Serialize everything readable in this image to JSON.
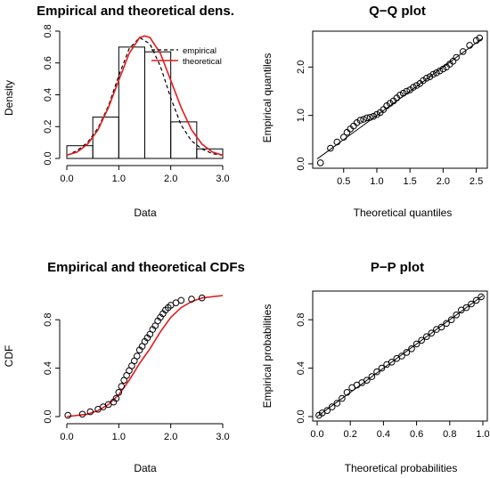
{
  "chart_data": [
    {
      "type": "bar",
      "title": "Empirical and theoretical dens.",
      "xlabel": "Data",
      "ylabel": "Density",
      "xlim": [
        0,
        3
      ],
      "ylim": [
        0,
        0.8
      ],
      "xticks": [
        "0.0",
        "1.0",
        "2.0",
        "3.0"
      ],
      "yticks": [
        "0.0",
        "0.2",
        "0.4",
        "0.6",
        "0.8"
      ],
      "bins": [
        {
          "from": 0.0,
          "to": 0.5,
          "density": 0.08
        },
        {
          "from": 0.5,
          "to": 1.0,
          "density": 0.26
        },
        {
          "from": 1.0,
          "to": 1.5,
          "density": 0.7
        },
        {
          "from": 1.5,
          "to": 2.0,
          "density": 0.67
        },
        {
          "from": 2.0,
          "to": 2.5,
          "density": 0.23
        },
        {
          "from": 2.5,
          "to": 3.0,
          "density": 0.06
        }
      ],
      "legend": {
        "position": "top-right",
        "entries": [
          "empirical",
          "theoretical"
        ]
      },
      "series": [
        {
          "name": "empirical",
          "style": "dashed",
          "color": "#000000",
          "x": [
            0.0,
            0.2,
            0.4,
            0.6,
            0.8,
            1.0,
            1.2,
            1.4,
            1.6,
            1.8,
            2.0,
            2.2,
            2.4,
            2.6,
            2.8,
            3.0
          ],
          "y": [
            0.02,
            0.05,
            0.1,
            0.19,
            0.33,
            0.52,
            0.69,
            0.76,
            0.72,
            0.58,
            0.38,
            0.21,
            0.11,
            0.06,
            0.03,
            0.02
          ]
        },
        {
          "name": "theoretical",
          "style": "solid",
          "color": "#e41a1c",
          "x": [
            0.0,
            0.2,
            0.4,
            0.6,
            0.8,
            1.0,
            1.2,
            1.4,
            1.5,
            1.6,
            1.8,
            2.0,
            2.2,
            2.4,
            2.6,
            2.8,
            3.0
          ],
          "y": [
            0.02,
            0.04,
            0.09,
            0.18,
            0.32,
            0.49,
            0.66,
            0.76,
            0.77,
            0.76,
            0.66,
            0.49,
            0.32,
            0.18,
            0.09,
            0.04,
            0.02
          ]
        }
      ]
    },
    {
      "type": "scatter",
      "title": "Q−Q plot",
      "xlabel": "Theoretical quantiles",
      "ylabel": "Empirical quantiles",
      "xlim": [
        0.1,
        2.6
      ],
      "ylim": [
        0,
        2.65
      ],
      "xticks": [
        "0.5",
        "1.0",
        "1.5",
        "2.0",
        "2.5"
      ],
      "yticks": [
        "0.0",
        "1.0",
        "2.0"
      ],
      "reference_line": {
        "from": [
          0.1,
          0.1
        ],
        "to": [
          2.6,
          2.6
        ]
      },
      "x": [
        0.15,
        0.3,
        0.4,
        0.5,
        0.55,
        0.6,
        0.65,
        0.7,
        0.75,
        0.8,
        0.85,
        0.9,
        0.95,
        1.0,
        1.05,
        1.1,
        1.15,
        1.2,
        1.25,
        1.3,
        1.35,
        1.4,
        1.45,
        1.5,
        1.55,
        1.6,
        1.65,
        1.7,
        1.75,
        1.8,
        1.85,
        1.9,
        1.95,
        2.0,
        2.05,
        2.1,
        2.15,
        2.2,
        2.3,
        2.4,
        2.5,
        2.55
      ],
      "y": [
        0.02,
        0.32,
        0.45,
        0.55,
        0.65,
        0.72,
        0.78,
        0.85,
        0.9,
        0.92,
        0.95,
        0.96,
        0.98,
        1.02,
        1.06,
        1.12,
        1.2,
        1.25,
        1.3,
        1.36,
        1.42,
        1.46,
        1.5,
        1.53,
        1.58,
        1.62,
        1.66,
        1.72,
        1.77,
        1.8,
        1.85,
        1.88,
        1.92,
        1.96,
        2.0,
        2.06,
        2.12,
        2.2,
        2.32,
        2.45,
        2.55,
        2.6
      ]
    },
    {
      "type": "scatter",
      "title": "Empirical and theoretical CDFs",
      "xlabel": "Data",
      "ylabel": "CDF",
      "xlim": [
        0,
        3
      ],
      "ylim": [
        0,
        1
      ],
      "xticks": [
        "0.0",
        "1.0",
        "2.0",
        "3.0"
      ],
      "yticks": [
        "0.0",
        "0.4",
        "0.8"
      ],
      "points": {
        "x": [
          0.02,
          0.3,
          0.45,
          0.6,
          0.7,
          0.8,
          0.9,
          0.95,
          1.0,
          1.05,
          1.1,
          1.15,
          1.2,
          1.25,
          1.3,
          1.35,
          1.4,
          1.45,
          1.5,
          1.55,
          1.6,
          1.65,
          1.7,
          1.75,
          1.8,
          1.85,
          1.9,
          1.95,
          2.0,
          2.1,
          2.2,
          2.4,
          2.6
        ],
        "y": [
          0.01,
          0.02,
          0.04,
          0.06,
          0.08,
          0.1,
          0.12,
          0.15,
          0.2,
          0.25,
          0.3,
          0.34,
          0.38,
          0.42,
          0.46,
          0.5,
          0.55,
          0.58,
          0.62,
          0.65,
          0.68,
          0.72,
          0.75,
          0.79,
          0.82,
          0.85,
          0.88,
          0.9,
          0.92,
          0.94,
          0.96,
          0.97,
          0.98
        ]
      },
      "theoretical_cdf": {
        "color": "#e41a1c",
        "x": [
          0.0,
          0.4,
          0.6,
          0.8,
          1.0,
          1.2,
          1.4,
          1.5,
          1.6,
          1.8,
          2.0,
          2.2,
          2.4,
          2.6,
          3.0
        ],
        "y": [
          0.0,
          0.02,
          0.05,
          0.1,
          0.18,
          0.3,
          0.44,
          0.5,
          0.56,
          0.7,
          0.82,
          0.9,
          0.95,
          0.98,
          1.0
        ]
      }
    },
    {
      "type": "scatter",
      "title": "P−P plot",
      "xlabel": "Theoretical probabilities",
      "ylabel": "Empirical probabilities",
      "xlim": [
        0,
        1
      ],
      "ylim": [
        0,
        1
      ],
      "xticks": [
        "0.0",
        "0.2",
        "0.4",
        "0.6",
        "0.8",
        "1.0"
      ],
      "yticks": [
        "0.0",
        "0.4",
        "0.8"
      ],
      "reference_line": {
        "from": [
          0,
          0
        ],
        "to": [
          1,
          1
        ]
      },
      "x": [
        0.01,
        0.03,
        0.06,
        0.09,
        0.12,
        0.15,
        0.18,
        0.21,
        0.24,
        0.27,
        0.3,
        0.33,
        0.36,
        0.39,
        0.42,
        0.45,
        0.48,
        0.51,
        0.54,
        0.57,
        0.6,
        0.63,
        0.66,
        0.69,
        0.72,
        0.75,
        0.78,
        0.81,
        0.84,
        0.87,
        0.9,
        0.93,
        0.96,
        0.99
      ],
      "y": [
        0.01,
        0.03,
        0.05,
        0.08,
        0.11,
        0.15,
        0.2,
        0.24,
        0.26,
        0.28,
        0.3,
        0.33,
        0.37,
        0.4,
        0.43,
        0.45,
        0.48,
        0.5,
        0.53,
        0.56,
        0.6,
        0.63,
        0.66,
        0.69,
        0.72,
        0.74,
        0.77,
        0.8,
        0.84,
        0.88,
        0.9,
        0.93,
        0.96,
        0.99
      ]
    }
  ]
}
